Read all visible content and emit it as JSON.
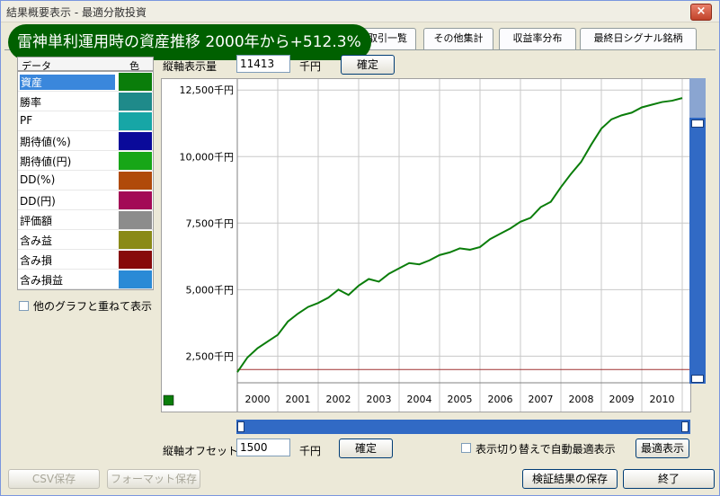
{
  "window": {
    "title": "結果概要表示 - 最適分散投資",
    "close_label": "×"
  },
  "banner": {
    "text": "雷神単利運用時の資産推移 2000年から+512.3%"
  },
  "tabs": [
    {
      "label": "取引一覧"
    },
    {
      "label": "その他集計"
    },
    {
      "label": "収益率分布"
    },
    {
      "label": "最終日シグナル銘柄"
    }
  ],
  "series_list": {
    "header_data": "データ",
    "header_color": "色",
    "items": [
      {
        "label": "資産",
        "color": "#0a7d0a",
        "selected": true
      },
      {
        "label": "勝率",
        "color": "#1f8a8a"
      },
      {
        "label": "PF",
        "color": "#17a6a6"
      },
      {
        "label": "期待値(%)",
        "color": "#0a0a9a"
      },
      {
        "label": "期待値(円)",
        "color": "#17a617"
      },
      {
        "label": "DD(%)",
        "color": "#b04a0a"
      },
      {
        "label": "DD(円)",
        "color": "#a30a56"
      },
      {
        "label": "評価額",
        "color": "#8c8c8c"
      },
      {
        "label": "含み益",
        "color": "#8a8a17"
      },
      {
        "label": "含み損",
        "color": "#870a0a"
      },
      {
        "label": "含み損益",
        "color": "#2a8ad6"
      }
    ]
  },
  "overlay": {
    "label": "他のグラフと重ねて表示",
    "checked": false
  },
  "vaxis": {
    "label": "縦軸表示量",
    "value": "11413",
    "unit": "千円",
    "button": "確定"
  },
  "offset": {
    "label": "縦軸オフセット",
    "value": "1500",
    "unit": "千円",
    "button": "確定"
  },
  "autofit": {
    "label": "表示切り替えで自動最適表示",
    "checked": false,
    "button": "最適表示"
  },
  "footer": {
    "csv": "CSV保存",
    "format": "フォーマット保存",
    "save": "検証結果の保存",
    "close": "終了"
  },
  "chart_data": {
    "type": "line",
    "title": "",
    "xlabel": "",
    "ylabel": "",
    "y_tick_labels": [
      "12,500千円",
      "10,000千円",
      "7,500千円",
      "5,000千円",
      "2,500千円"
    ],
    "y_ticks": [
      12500,
      10000,
      7500,
      5000,
      2500
    ],
    "x_tick_labels": [
      "2000",
      "2001",
      "2002",
      "2003",
      "2004",
      "2005",
      "2006",
      "2007",
      "2008",
      "2009",
      "2010"
    ],
    "xlim": [
      2000,
      2011.2
    ],
    "ylim": [
      1500,
      12913
    ],
    "grid": true,
    "baseline": 2000,
    "series": [
      {
        "color": "#0a7d0a",
        "x": [
          2000.0,
          2000.25,
          2000.5,
          2000.75,
          2001.0,
          2001.25,
          2001.5,
          2001.75,
          2002.0,
          2002.25,
          2002.5,
          2002.75,
          2003.0,
          2003.25,
          2003.5,
          2003.75,
          2004.0,
          2004.25,
          2004.5,
          2004.75,
          2005.0,
          2005.25,
          2005.5,
          2005.75,
          2006.0,
          2006.25,
          2006.5,
          2006.75,
          2007.0,
          2007.25,
          2007.5,
          2007.75,
          2008.0,
          2008.25,
          2008.5,
          2008.75,
          2009.0,
          2009.25,
          2009.5,
          2009.75,
          2010.0,
          2010.25,
          2010.5,
          2010.75,
          2011.0
        ],
        "values": [
          1900,
          2450,
          2800,
          3050,
          3300,
          3800,
          4100,
          4350,
          4500,
          4700,
          5000,
          4800,
          5150,
          5400,
          5300,
          5600,
          5800,
          6000,
          5950,
          6100,
          6300,
          6400,
          6550,
          6500,
          6600,
          6900,
          7100,
          7300,
          7550,
          7700,
          8100,
          8300,
          8850,
          9350,
          9800,
          10450,
          11050,
          11400,
          11550,
          11650,
          11850,
          11950,
          12050,
          12100,
          12200
        ]
      }
    ],
    "reference_line": {
      "y": 2000,
      "color": "#a03030"
    }
  }
}
